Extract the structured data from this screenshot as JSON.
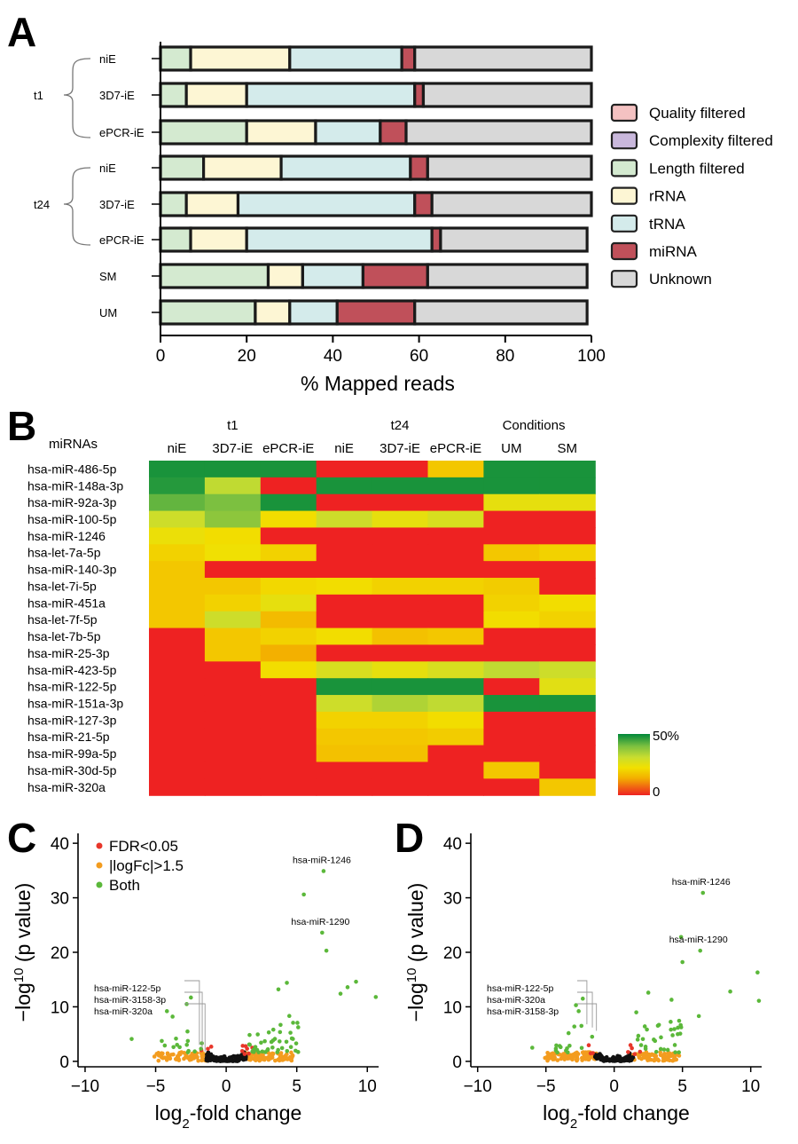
{
  "panels": {
    "a": "A",
    "b": "B",
    "c": "C",
    "d": "D"
  },
  "chart_data": [
    {
      "panel": "A",
      "type": "bar",
      "orientation": "horizontal",
      "stacked": true,
      "xlabel": "% Mapped reads",
      "xlim": [
        0,
        100
      ],
      "xticks": [
        "0",
        "20",
        "40",
        "60",
        "80",
        "100"
      ],
      "categories": [
        "niE",
        "3D7-iE",
        "ePCR-iE",
        "niE",
        "3D7-iE",
        "ePCR-iE",
        "SM",
        "UM"
      ],
      "groups": [
        {
          "label": "t1",
          "rows": [
            0,
            1,
            2
          ]
        },
        {
          "label": "t24",
          "rows": [
            3,
            4,
            5
          ]
        }
      ],
      "legend_position": "right",
      "series": [
        {
          "name": "Quality filtered",
          "color": "#f4c2c2",
          "values": [
            0,
            0,
            0,
            0,
            0,
            0,
            0,
            0
          ]
        },
        {
          "name": "Complexity filtered",
          "color": "#c9b8dc",
          "values": [
            0,
            0,
            0,
            0,
            0,
            0,
            0,
            0
          ]
        },
        {
          "name": "Length filtered",
          "color": "#d4ead0",
          "values": [
            7,
            6,
            20,
            10,
            6,
            7,
            25,
            22
          ]
        },
        {
          "name": "rRNA",
          "color": "#fdf6d4",
          "values": [
            23,
            14,
            16,
            18,
            12,
            13,
            8,
            8
          ]
        },
        {
          "name": "tRNA",
          "color": "#d4ebeb",
          "values": [
            26,
            39,
            15,
            30,
            41,
            43,
            14,
            11
          ]
        },
        {
          "name": "miRNA",
          "color": "#c0505a",
          "values": [
            3,
            2,
            6,
            4,
            4,
            2,
            15,
            18
          ]
        },
        {
          "name": "Unknown",
          "color": "#d8d8d8",
          "values": [
            41,
            39,
            43,
            38,
            37,
            34,
            37,
            40
          ]
        }
      ]
    },
    {
      "panel": "B",
      "type": "heatmap",
      "title": "miRNAs",
      "group_labels": [
        "t1",
        "t24",
        "Conditions"
      ],
      "columns": [
        "niE",
        "3D7-iE",
        "ePCR-iE",
        "niE",
        "3D7-iE",
        "ePCR-iE",
        "UM",
        "SM"
      ],
      "rows": [
        "hsa-miR-486-5p",
        "hsa-miR-148a-3p",
        "hsa-miR-92a-3p",
        "hsa-miR-100-5p",
        "hsa-miR-1246",
        "hsa-let-7a-5p",
        "hsa-miR-140-3p",
        "hsa-let-7i-5p",
        "hsa-miR-451a",
        "hsa-let-7f-5p",
        "hsa-let-7b-5p",
        "hsa-miR-25-3p",
        "hsa-miR-423-5p",
        "hsa-miR-122-5p",
        "hsa-miR-151a-3p",
        "hsa-miR-127-3p",
        "hsa-miR-21-5p",
        "hsa-miR-99a-5p",
        "hsa-miR-30d-5p",
        "hsa-miR-320a"
      ],
      "values": [
        [
          48,
          48,
          48,
          0,
          0,
          18,
          48,
          48
        ],
        [
          47,
          32,
          0,
          48,
          48,
          48,
          48,
          48
        ],
        [
          42,
          40,
          48,
          0,
          0,
          0,
          25,
          25
        ],
        [
          30,
          38,
          22,
          30,
          25,
          28,
          0,
          0
        ],
        [
          24,
          22,
          0,
          0,
          0,
          0,
          0,
          0
        ],
        [
          20,
          23,
          20,
          0,
          0,
          0,
          18,
          20
        ],
        [
          18,
          0,
          0,
          0,
          0,
          0,
          0,
          0
        ],
        [
          18,
          18,
          21,
          22,
          20,
          20,
          19,
          0
        ],
        [
          18,
          20,
          25,
          0,
          0,
          0,
          20,
          22
        ],
        [
          18,
          30,
          16,
          0,
          0,
          0,
          22,
          20
        ],
        [
          0,
          18,
          20,
          22,
          17,
          18,
          0,
          0
        ],
        [
          0,
          18,
          14,
          0,
          0,
          0,
          0,
          0
        ],
        [
          0,
          0,
          22,
          28,
          25,
          28,
          32,
          30
        ],
        [
          0,
          0,
          0,
          48,
          48,
          48,
          0,
          26
        ],
        [
          0,
          0,
          0,
          30,
          34,
          32,
          48,
          48
        ],
        [
          0,
          0,
          0,
          20,
          20,
          22,
          0,
          0
        ],
        [
          0,
          0,
          0,
          18,
          18,
          19,
          0,
          0
        ],
        [
          0,
          0,
          0,
          17,
          17,
          0,
          0,
          0
        ],
        [
          0,
          0,
          0,
          0,
          0,
          0,
          18,
          0
        ],
        [
          0,
          0,
          0,
          0,
          0,
          0,
          0,
          18
        ]
      ],
      "scale_min_label": "0",
      "scale_max_label": "50%",
      "vmin": 0,
      "vmax": 50,
      "colormap": [
        "#ee2222",
        "#f3b000",
        "#f2e000",
        "#c8dd30",
        "#7cc040",
        "#00883a"
      ]
    },
    {
      "panel": "C",
      "type": "scatter",
      "xlabel_main": "log",
      "xlabel_sub": "2",
      "xlabel_rest": "-fold change",
      "ylabel_main": "−log",
      "ylabel_sup": "10",
      "ylabel_rest": " (p value)",
      "xlim": [
        -10.5,
        10.8
      ],
      "ylim": [
        -1,
        41
      ],
      "xticks": [
        -10,
        -5,
        0,
        5,
        10
      ],
      "xtick_labels": [
        "−10",
        "−5",
        "0",
        "5",
        "10"
      ],
      "yticks": [
        0,
        10,
        20,
        30,
        40
      ],
      "ytick_labels": [
        "0",
        "10",
        "20",
        "30",
        "40"
      ],
      "legend": [
        {
          "name": "FDR<0.05",
          "color": "#e8362a"
        },
        {
          "name": "|logFc|>1.5",
          "color": "#f39c1f"
        },
        {
          "name": "Both",
          "color": "#5bb83a"
        }
      ],
      "annotations": [
        {
          "text": "hsa-miR-1246",
          "x": 6.9,
          "y": 34.9
        },
        {
          "text": "hsa-miR-1290",
          "x": 6.8,
          "y": 23.6
        },
        {
          "text": "hsa-miR-122-5p",
          "x": -1.9,
          "y": 3.0
        },
        {
          "text": "hsa-miR-3158-3p",
          "x": -1.7,
          "y": 2.4
        },
        {
          "text": "hsa-miR-320a",
          "x": -1.5,
          "y": 1.8
        }
      ],
      "seed": 7,
      "counts": {
        "black": 140,
        "orange": 160,
        "red": 10,
        "green_extra": 55
      },
      "green_points": [
        [
          6.9,
          34.9
        ],
        [
          5.5,
          30.6
        ],
        [
          6.8,
          23.6
        ],
        [
          7.1,
          20.3
        ],
        [
          9.2,
          14.6
        ],
        [
          10.6,
          11.8
        ],
        [
          8.6,
          13.6
        ],
        [
          8.1,
          12.4
        ],
        [
          -6.7,
          4.1
        ],
        [
          -4.2,
          9.2
        ],
        [
          -3.8,
          8.2
        ],
        [
          -2.5,
          11.7
        ],
        [
          -2.8,
          10.5
        ],
        [
          4.3,
          14.4
        ],
        [
          3.7,
          13.2
        ]
      ]
    },
    {
      "panel": "D",
      "type": "scatter",
      "xlabel_main": "log",
      "xlabel_sub": "2",
      "xlabel_rest": "-fold change",
      "ylabel_main": "−log",
      "ylabel_sup": "10",
      "ylabel_rest": " (p value)",
      "xlim": [
        -10.5,
        10.8
      ],
      "ylim": [
        -1,
        41
      ],
      "xticks": [
        -10,
        -5,
        0,
        5,
        10
      ],
      "xtick_labels": [
        "−10",
        "−5",
        "0",
        "5",
        "10"
      ],
      "yticks": [
        0,
        10,
        20,
        30,
        40
      ],
      "ytick_labels": [
        "0",
        "10",
        "20",
        "30",
        "40"
      ],
      "annotations": [
        {
          "text": "hsa-miR-1246",
          "x": 6.5,
          "y": 30.9
        },
        {
          "text": "hsa-miR-1290",
          "x": 6.3,
          "y": 20.3
        },
        {
          "text": "hsa-miR-122-5p",
          "x": -2.0,
          "y": 6.8
        },
        {
          "text": "hsa-miR-320a",
          "x": -1.6,
          "y": 6.2
        },
        {
          "text": "hsa-miR-3158-3p",
          "x": -1.3,
          "y": 5.6
        }
      ],
      "seed": 19,
      "counts": {
        "black": 120,
        "orange": 170,
        "red": 8,
        "green_extra": 45
      },
      "green_points": [
        [
          6.5,
          30.9
        ],
        [
          4.9,
          22.8
        ],
        [
          6.3,
          20.3
        ],
        [
          5.0,
          18.2
        ],
        [
          10.5,
          16.3
        ],
        [
          10.6,
          11.1
        ],
        [
          8.5,
          12.8
        ],
        [
          6.2,
          8.3
        ],
        [
          -6.0,
          2.5
        ],
        [
          -2.3,
          11.5
        ],
        [
          -2.8,
          10.3
        ],
        [
          -2.6,
          9.2
        ],
        [
          -2.4,
          6.5
        ],
        [
          2.5,
          12.6
        ],
        [
          4.2,
          11.3
        ]
      ]
    }
  ]
}
